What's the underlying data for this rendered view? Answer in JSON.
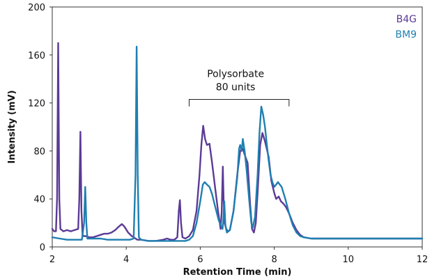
{
  "chart_data": {
    "type": "line",
    "xlabel": "Retention Time (min)",
    "ylabel": "Intensity (mV)",
    "xlim": [
      2,
      12
    ],
    "ylim": [
      0,
      200
    ],
    "xticks": [
      "2",
      "4",
      "6",
      "8",
      "10",
      "12"
    ],
    "yticks": [
      "0",
      "40",
      "80",
      "120",
      "160",
      "200"
    ],
    "grid": false,
    "legend_position": "top-right",
    "annotation": {
      "line1": "Polysorbate",
      "line2": "80 units",
      "x_range": [
        5.7,
        8.4
      ],
      "y": 123
    },
    "series": [
      {
        "name": "B4G",
        "color": "#5b3a96",
        "points": [
          [
            2.0,
            15
          ],
          [
            2.05,
            13
          ],
          [
            2.1,
            13
          ],
          [
            2.13,
            40
          ],
          [
            2.16,
            170
          ],
          [
            2.19,
            40
          ],
          [
            2.22,
            15
          ],
          [
            2.3,
            13
          ],
          [
            2.4,
            14
          ],
          [
            2.5,
            13
          ],
          [
            2.6,
            14
          ],
          [
            2.7,
            15
          ],
          [
            2.73,
            40
          ],
          [
            2.76,
            96
          ],
          [
            2.79,
            30
          ],
          [
            2.82,
            10
          ],
          [
            2.85,
            9
          ],
          [
            2.9,
            9
          ],
          [
            3.0,
            8
          ],
          [
            3.1,
            8
          ],
          [
            3.2,
            9
          ],
          [
            3.3,
            10
          ],
          [
            3.4,
            11
          ],
          [
            3.5,
            11
          ],
          [
            3.6,
            12
          ],
          [
            3.7,
            14
          ],
          [
            3.8,
            17
          ],
          [
            3.88,
            19
          ],
          [
            3.95,
            17
          ],
          [
            4.05,
            12
          ],
          [
            4.15,
            9
          ],
          [
            4.25,
            7
          ],
          [
            4.3,
            6
          ],
          [
            4.4,
            6
          ],
          [
            4.6,
            5
          ],
          [
            4.8,
            5
          ],
          [
            5.0,
            6
          ],
          [
            5.1,
            7
          ],
          [
            5.2,
            6
          ],
          [
            5.3,
            6
          ],
          [
            5.38,
            8
          ],
          [
            5.42,
            30
          ],
          [
            5.45,
            39
          ],
          [
            5.48,
            20
          ],
          [
            5.52,
            8
          ],
          [
            5.6,
            7
          ],
          [
            5.7,
            9
          ],
          [
            5.8,
            14
          ],
          [
            5.9,
            30
          ],
          [
            5.98,
            60
          ],
          [
            6.03,
            85
          ],
          [
            6.08,
            101
          ],
          [
            6.13,
            90
          ],
          [
            6.18,
            85
          ],
          [
            6.25,
            86
          ],
          [
            6.32,
            70
          ],
          [
            6.4,
            50
          ],
          [
            6.48,
            30
          ],
          [
            6.55,
            15
          ],
          [
            6.58,
            30
          ],
          [
            6.61,
            67
          ],
          [
            6.63,
            40
          ],
          [
            6.66,
            20
          ],
          [
            6.7,
            15
          ],
          [
            6.75,
            13
          ],
          [
            6.8,
            14
          ],
          [
            6.9,
            30
          ],
          [
            7.0,
            60
          ],
          [
            7.08,
            80
          ],
          [
            7.15,
            82
          ],
          [
            7.2,
            77
          ],
          [
            7.28,
            70
          ],
          [
            7.35,
            35
          ],
          [
            7.4,
            15
          ],
          [
            7.45,
            12
          ],
          [
            7.5,
            20
          ],
          [
            7.55,
            45
          ],
          [
            7.62,
            85
          ],
          [
            7.68,
            95
          ],
          [
            7.75,
            88
          ],
          [
            7.85,
            75
          ],
          [
            7.92,
            55
          ],
          [
            8.0,
            45
          ],
          [
            8.05,
            40
          ],
          [
            8.12,
            42
          ],
          [
            8.18,
            38
          ],
          [
            8.25,
            36
          ],
          [
            8.32,
            33
          ],
          [
            8.4,
            28
          ],
          [
            8.5,
            20
          ],
          [
            8.6,
            14
          ],
          [
            8.7,
            10
          ],
          [
            8.8,
            8
          ],
          [
            9.0,
            7
          ],
          [
            9.5,
            7
          ],
          [
            10.0,
            7
          ],
          [
            11.0,
            7
          ],
          [
            12.0,
            7
          ]
        ]
      },
      {
        "name": "BM9",
        "color": "#1f7fb0",
        "points": [
          [
            2.0,
            8
          ],
          [
            2.2,
            7
          ],
          [
            2.4,
            6
          ],
          [
            2.6,
            6
          ],
          [
            2.8,
            6
          ],
          [
            2.86,
            20
          ],
          [
            2.89,
            50
          ],
          [
            2.92,
            20
          ],
          [
            2.95,
            7
          ],
          [
            3.1,
            7
          ],
          [
            3.3,
            7
          ],
          [
            3.5,
            6
          ],
          [
            3.7,
            6
          ],
          [
            3.9,
            6
          ],
          [
            4.1,
            6
          ],
          [
            4.2,
            7
          ],
          [
            4.25,
            60
          ],
          [
            4.28,
            167
          ],
          [
            4.31,
            60
          ],
          [
            4.34,
            8
          ],
          [
            4.4,
            6
          ],
          [
            4.6,
            5
          ],
          [
            4.8,
            5
          ],
          [
            5.0,
            5
          ],
          [
            5.2,
            5
          ],
          [
            5.4,
            5
          ],
          [
            5.6,
            5
          ],
          [
            5.7,
            6
          ],
          [
            5.8,
            9
          ],
          [
            5.9,
            20
          ],
          [
            6.0,
            38
          ],
          [
            6.07,
            52
          ],
          [
            6.12,
            54
          ],
          [
            6.18,
            52
          ],
          [
            6.25,
            50
          ],
          [
            6.32,
            44
          ],
          [
            6.4,
            34
          ],
          [
            6.5,
            22
          ],
          [
            6.6,
            15
          ],
          [
            6.62,
            20
          ],
          [
            6.65,
            38
          ],
          [
            6.68,
            18
          ],
          [
            6.72,
            12
          ],
          [
            6.8,
            14
          ],
          [
            6.9,
            30
          ],
          [
            7.0,
            58
          ],
          [
            7.05,
            82
          ],
          [
            7.08,
            85
          ],
          [
            7.12,
            80
          ],
          [
            7.15,
            90
          ],
          [
            7.2,
            80
          ],
          [
            7.25,
            65
          ],
          [
            7.32,
            40
          ],
          [
            7.38,
            20
          ],
          [
            7.42,
            16
          ],
          [
            7.48,
            25
          ],
          [
            7.55,
            60
          ],
          [
            7.6,
            95
          ],
          [
            7.65,
            117
          ],
          [
            7.7,
            110
          ],
          [
            7.75,
            100
          ],
          [
            7.8,
            85
          ],
          [
            7.85,
            72
          ],
          [
            7.9,
            60
          ],
          [
            7.95,
            54
          ],
          [
            8.0,
            50
          ],
          [
            8.05,
            52
          ],
          [
            8.1,
            54
          ],
          [
            8.15,
            52
          ],
          [
            8.2,
            50
          ],
          [
            8.3,
            40
          ],
          [
            8.4,
            28
          ],
          [
            8.5,
            18
          ],
          [
            8.6,
            12
          ],
          [
            8.7,
            9
          ],
          [
            8.8,
            8
          ],
          [
            9.0,
            7
          ],
          [
            9.5,
            7
          ],
          [
            10.0,
            7
          ],
          [
            11.0,
            7
          ],
          [
            12.0,
            7
          ]
        ]
      }
    ]
  }
}
